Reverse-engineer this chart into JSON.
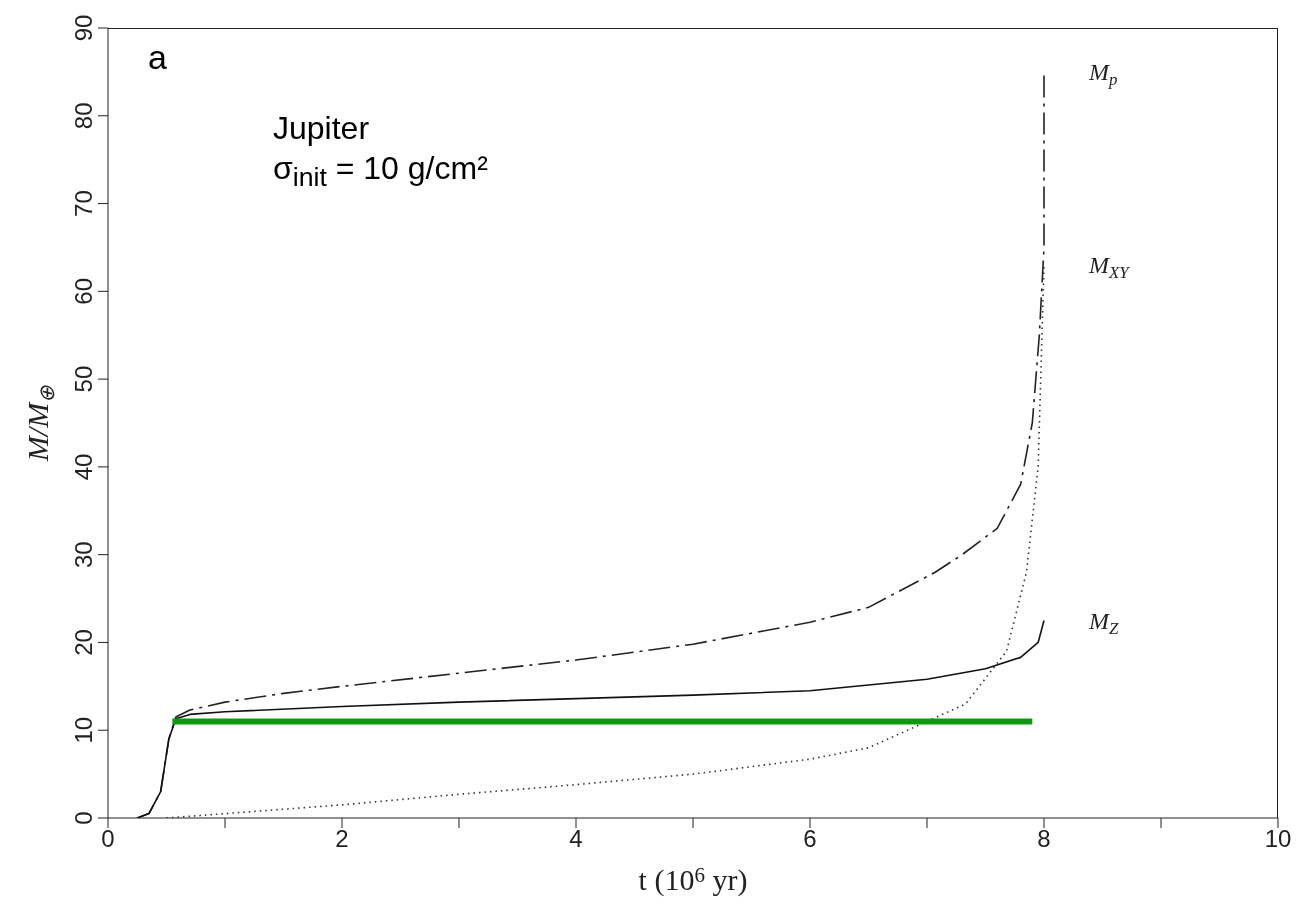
{
  "chart_data": {
    "type": "line",
    "xlabel": "t (10$^{6}$ yr)",
    "ylabel": "M/M$_{⊕}$",
    "annotations": [
      "a",
      "Jupiter",
      "σ$_{init}$ = 10 g/cm²"
    ],
    "xlim": [
      0,
      10
    ],
    "xticks": [
      0,
      {
        "value": 1,
        "label": null
      },
      2,
      {
        "value": 3,
        "label": null
      },
      4,
      {
        "value": 5,
        "label": null
      },
      6,
      {
        "value": 7,
        "label": null
      },
      8,
      {
        "value": 9,
        "label": null
      },
      10
    ],
    "ylim": [
      0,
      90
    ],
    "yticks": [
      0,
      10,
      20,
      30,
      40,
      50,
      60,
      70,
      80,
      90
    ],
    "marker": "none",
    "series": [
      {
        "name": "M$_{p}$",
        "color": "#222222",
        "line_style": "dashed",
        "x": [
          0.25,
          0.35,
          0.45,
          0.52,
          0.58,
          0.7,
          1.0,
          1.5,
          2,
          3,
          4,
          5,
          6,
          6.5,
          7.07,
          7.3,
          7.6,
          7.8,
          7.9,
          7.96,
          8.0,
          8.0
        ],
        "values": [
          0,
          0.5,
          3,
          9,
          11.5,
          12.3,
          13.2,
          14.2,
          15,
          16.5,
          18,
          19.8,
          22.3,
          24,
          28,
          30,
          33,
          38,
          45,
          55,
          65,
          85
        ]
      },
      {
        "name": "M$_{XY}$",
        "color": "#333333",
        "line_style": "dotted",
        "x": [
          0.5,
          1,
          1.5,
          2,
          3,
          4,
          5,
          6,
          6.5,
          7.0,
          7.33,
          7.68,
          7.85,
          7.95,
          8.0
        ],
        "values": [
          0,
          0.5,
          1,
          1.5,
          2.7,
          3.8,
          5,
          6.7,
          8,
          11,
          13,
          19,
          28,
          40,
          63
        ]
      },
      {
        "name": "M$_{Z}$",
        "color": "#111111",
        "line_style": "solid",
        "x": [
          0.25,
          0.35,
          0.45,
          0.52,
          0.58,
          0.7,
          1,
          2,
          3,
          4,
          5,
          6,
          7,
          7.5,
          7.8,
          7.95,
          8.0
        ],
        "values": [
          0,
          0.5,
          3,
          9,
          11.3,
          11.8,
          12.1,
          12.7,
          13.2,
          13.6,
          14,
          14.5,
          15.8,
          17,
          18.3,
          20,
          22.5
        ]
      },
      {
        "color": "#109910",
        "line_style": "solid",
        "x": [
          0.55,
          7.9
        ],
        "values": [
          11,
          11
        ]
      }
    ]
  }
}
